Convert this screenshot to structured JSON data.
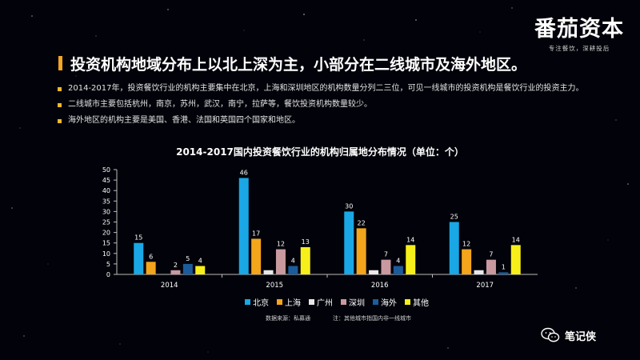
{
  "logo": {
    "main": "番茄资本",
    "sub": "专注餐饮，深耕投后"
  },
  "headline": "投资机构地域分布上以北上深为主，小部分在二线城市及海外地区。",
  "bullets": [
    "2014-2017年，投资餐饮行业的机构主要集中在北京，上海和深圳地区的机构数量分列二三位，可见一线城市的投资机构是餐饮行业的投资主力。",
    "二线城市主要包括杭州，南京，苏州，武汉，南宁，拉萨等，餐饮投资机构数量较少。",
    "海外地区的机构主要是美国、香港、法国和英国四个国家和地区。"
  ],
  "colors": {
    "accent": "#f5a623",
    "background": "#02030a"
  },
  "chart_data": {
    "type": "bar",
    "title": "2014-2017国内投资餐饮行业的机构归属地分布情况（单位：个）",
    "categories": [
      "2014",
      "2015",
      "2016",
      "2017"
    ],
    "ylim": [
      0,
      50
    ],
    "yticks": [
      0,
      5,
      10,
      15,
      20,
      25,
      30,
      35,
      40,
      45,
      50
    ],
    "grid": false,
    "legend_position": "bottom",
    "series": [
      {
        "name": "北京",
        "color": "#1aa7e5",
        "values": [
          15,
          46,
          30,
          25
        ],
        "labels": [
          "15",
          "46",
          "30",
          "25"
        ]
      },
      {
        "name": "上海",
        "color": "#f3a51b",
        "values": [
          6,
          17,
          22,
          12
        ],
        "labels": [
          "6",
          "17",
          "22",
          "12"
        ]
      },
      {
        "name": "广州",
        "color": "#e8e8e8",
        "values": [
          0,
          2,
          2,
          2
        ],
        "labels": [
          "",
          "",
          "",
          ""
        ]
      },
      {
        "name": "深圳",
        "color": "#c89aa0",
        "values": [
          2,
          12,
          7,
          7
        ],
        "labels": [
          "2",
          "12",
          "7",
          "7"
        ]
      },
      {
        "name": "海外",
        "color": "#1c5c9c",
        "values": [
          5,
          4,
          4,
          1
        ],
        "labels": [
          "5",
          "4",
          "4",
          "1"
        ]
      },
      {
        "name": "其他",
        "color": "#f7ef1a",
        "values": [
          4,
          13,
          14,
          14
        ],
        "labels": [
          "4",
          "13",
          "14",
          "14"
        ]
      }
    ]
  },
  "footnote": {
    "source": "数据来源：私募通",
    "note": "注：其他城市指国内非一线城市"
  },
  "watermark": {
    "label": "笔记侠",
    "icon": "wechat-icon"
  }
}
